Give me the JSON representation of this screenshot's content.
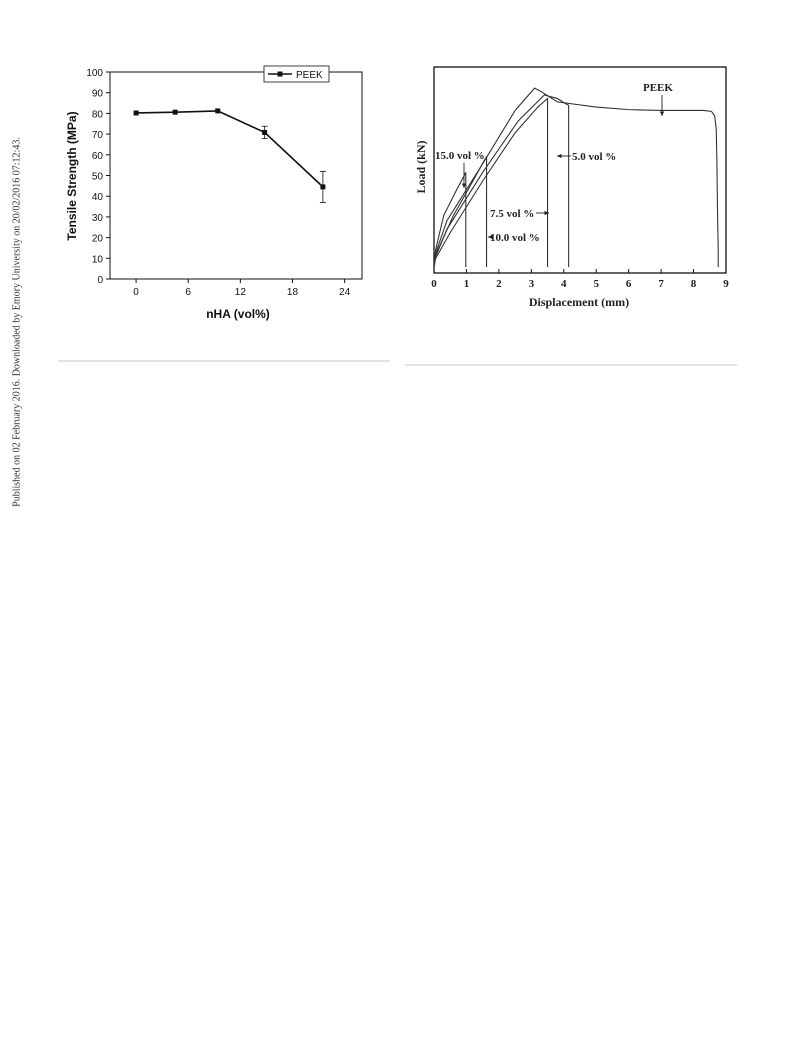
{
  "side_note": "Published on 02 February 2016. Downloaded by Emory University on 20/02/2016 07:12:43.",
  "chart_data": [
    {
      "type": "line",
      "xlabel": "nHA (vol%)",
      "ylabel": "Tensile Strength (MPa)",
      "xlim": [
        -3,
        26
      ],
      "ylim": [
        0,
        100
      ],
      "xticks": [
        0,
        6,
        12,
        18,
        24
      ],
      "yticks": [
        0,
        10,
        20,
        30,
        40,
        50,
        60,
        70,
        80,
        90,
        100
      ],
      "legend": {
        "position": "top-right",
        "entries": [
          "PEEK"
        ]
      },
      "grid": false,
      "series": [
        {
          "name": "PEEK",
          "x": [
            0,
            4.5,
            9.4,
            14.8,
            21.5
          ],
          "y": [
            80.2,
            80.6,
            81.2,
            70.8,
            44.5
          ],
          "error": [
            0,
            0,
            0,
            3,
            7.5
          ]
        }
      ],
      "colors": {
        "line": "#111111"
      }
    },
    {
      "type": "line",
      "xlabel": "Displacement (mm)",
      "ylabel": "Load (kN)",
      "xlim": [
        0,
        9
      ],
      "xticks": [
        0,
        1,
        2,
        3,
        4,
        5,
        6,
        7,
        8,
        9
      ],
      "y_tick_labels_shown": false,
      "grid": false,
      "annotations": [
        "PEEK",
        "15.0 vol %",
        "5.0 vol %",
        "7.5 vol %",
        "10.0 vol %"
      ],
      "series": [
        {
          "x": [
            0,
            0.05,
            0.4,
            1.5,
            2.5,
            3.1,
            3.3,
            3.8,
            5,
            6,
            7,
            7.5,
            8.3,
            8.55,
            8.65,
            8.7,
            8.72,
            8.74,
            8.76,
            8.76
          ],
          "y": [
            0,
            0.08,
            0.27,
            0.6,
            0.91,
            1.04,
            1.02,
            0.96,
            0.93,
            0.915,
            0.91,
            0.91,
            0.91,
            0.905,
            0.88,
            0.8,
            0.6,
            0.3,
            0.1,
            0
          ]
        },
        {
          "x": [
            0,
            0.05,
            0.4,
            1.5,
            2.6,
            3.4,
            3.8,
            4.05,
            4.15,
            4.15
          ],
          "y": [
            0,
            0.06,
            0.22,
            0.55,
            0.85,
            1.0,
            0.98,
            0.95,
            0.94,
            0
          ]
        },
        {
          "x": [
            0,
            0.05,
            0.5,
            1.5,
            2.5,
            3.2,
            3.5,
            3.5
          ],
          "y": [
            0,
            0.05,
            0.2,
            0.5,
            0.78,
            0.93,
            0.98,
            0
          ]
        },
        {
          "x": [
            0,
            0.05,
            0.6,
            1.2,
            1.55,
            1.62,
            1.62
          ],
          "y": [
            0,
            0.07,
            0.3,
            0.5,
            0.62,
            0.64,
            0
          ]
        },
        {
          "x": [
            0,
            0.05,
            0.3,
            0.7,
            0.9,
            0.98,
            0.98
          ],
          "y": [
            0,
            0.1,
            0.3,
            0.45,
            0.52,
            0.55,
            0
          ]
        }
      ],
      "colors": {
        "line": "#333333"
      }
    }
  ]
}
